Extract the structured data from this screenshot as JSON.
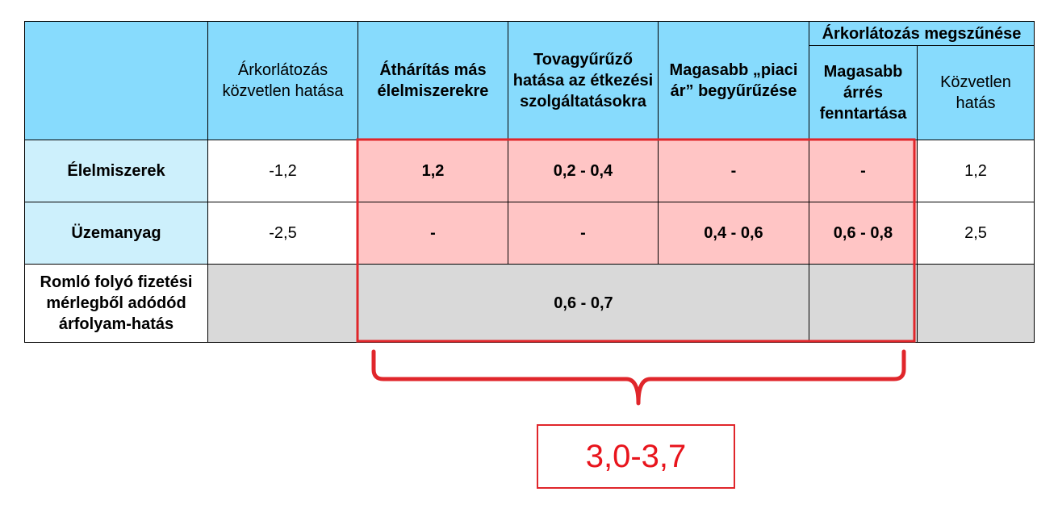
{
  "table": {
    "headers": {
      "corner": "",
      "direct_effect": "Árkorlátozás közvetlen hatása",
      "passthrough_other_food": "Áthárítás más élelmiszerekre",
      "spillover_catering": "Tovagyűrűző hatása az étkezési szolgáltatásokra",
      "higher_market_price": "Magasabb „piaci ár” begyűrűzése",
      "cessation_group": "Árkorlátozás megszűnése",
      "higher_margin": "Magasabb árrés fenntartása",
      "direct": "Közvetlen hatás"
    },
    "rows": [
      {
        "label": "Élelmiszerek",
        "direct_effect": "-1,2",
        "passthrough_other_food": "1,2",
        "spillover_catering": "0,2 - 0,4",
        "higher_market_price": "-",
        "higher_margin": "-",
        "direct": "1,2"
      },
      {
        "label": "Üzemanyag",
        "direct_effect": "-2,5",
        "passthrough_other_food": "-",
        "spillover_catering": "-",
        "higher_market_price": "0,4 - 0,6",
        "higher_margin": "0,6 - 0,8",
        "direct": "2,5"
      },
      {
        "label": "Romló folyó fizetési mérlegből adódód árfolyam-hatás",
        "direct_effect": "",
        "merged_value": "0,6 - 0,7",
        "higher_margin": "",
        "direct": ""
      }
    ]
  },
  "total": "3,0-3,7",
  "colors": {
    "header_bg": "#87dbfd",
    "row_label_bg": "#cdf0fc",
    "highlight_bg": "#ffc5c5",
    "gray_bg": "#d9d9d9",
    "accent_red": "#e0262b"
  }
}
